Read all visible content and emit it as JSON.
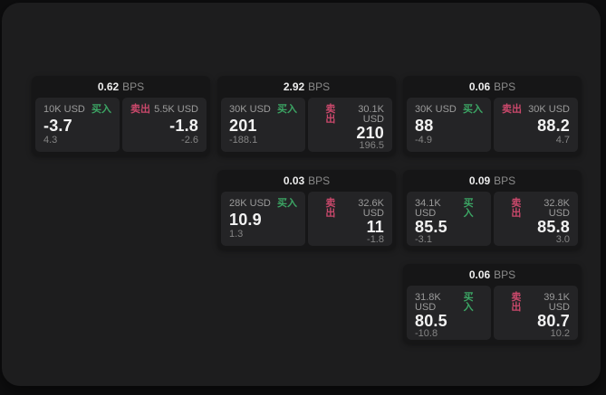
{
  "labels": {
    "bps_unit": "BPS",
    "buy": "买入",
    "sell": "卖出"
  },
  "colors": {
    "buy": "#3ca564",
    "sell": "#c9486b",
    "window_bg": "#1d1d1e",
    "card_bg": "#161617",
    "panel_bg": "#242426",
    "price_text": "#f2f2f2",
    "muted_text": "#9b9b9b"
  },
  "cards": [
    {
      "col": 1,
      "row": 1,
      "bps": "0.62",
      "buy": {
        "size": "10K USD",
        "price": "-3.7",
        "sub": "4.3"
      },
      "sell": {
        "size": "5.5K USD",
        "price": "-1.8",
        "sub": "-2.6"
      }
    },
    {
      "col": 2,
      "row": 1,
      "bps": "2.92",
      "buy": {
        "size": "30K USD",
        "price": "201",
        "sub": "-188.1"
      },
      "sell": {
        "size": "30.1K USD",
        "price": "210",
        "sub": "196.5"
      }
    },
    {
      "col": 3,
      "row": 1,
      "bps": "0.06",
      "buy": {
        "size": "30K USD",
        "price": "88",
        "sub": "-4.9"
      },
      "sell": {
        "size": "30K USD",
        "price": "88.2",
        "sub": "4.7"
      }
    },
    {
      "col": 2,
      "row": 2,
      "bps": "0.03",
      "buy": {
        "size": "28K USD",
        "price": "10.9",
        "sub": "1.3"
      },
      "sell": {
        "size": "32.6K USD",
        "price": "11",
        "sub": "-1.8"
      }
    },
    {
      "col": 3,
      "row": 2,
      "bps": "0.09",
      "buy": {
        "size": "34.1K USD",
        "price": "85.5",
        "sub": "-3.1"
      },
      "sell": {
        "size": "32.8K USD",
        "price": "85.8",
        "sub": "3.0"
      }
    },
    {
      "col": 3,
      "row": 3,
      "bps": "0.06",
      "buy": {
        "size": "31.8K USD",
        "price": "80.5",
        "sub": "-10.8"
      },
      "sell": {
        "size": "39.1K USD",
        "price": "80.7",
        "sub": "10.2"
      }
    }
  ]
}
